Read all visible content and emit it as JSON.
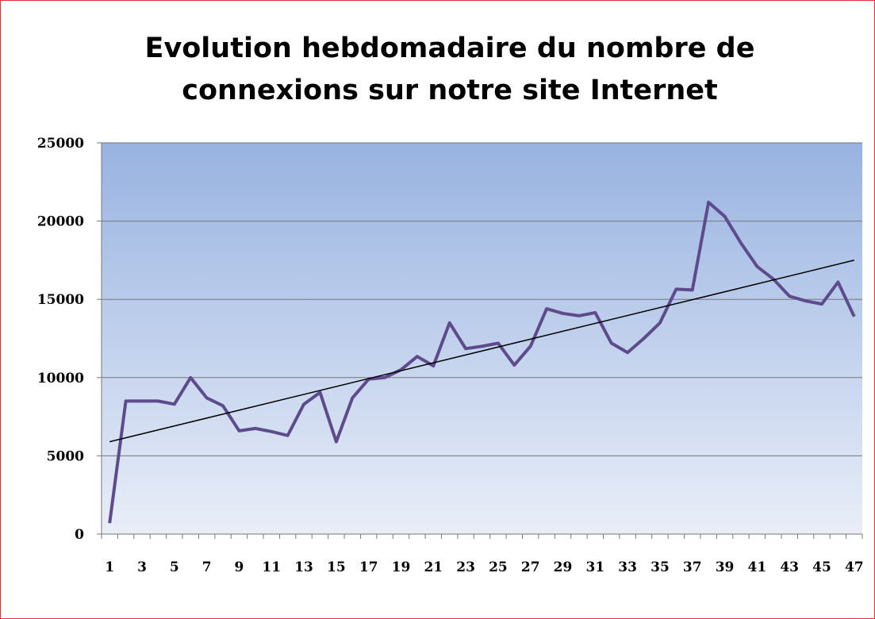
{
  "chart_data": {
    "type": "line",
    "title": [
      "Evolution hebdomadaire du nombre de",
      "connexions sur notre site Internet"
    ],
    "categories": [
      1,
      null,
      3,
      null,
      5,
      null,
      7,
      null,
      9,
      null,
      11,
      null,
      13,
      null,
      15,
      null,
      17,
      null,
      19,
      null,
      21,
      null,
      23,
      null,
      25,
      null,
      27,
      null,
      29,
      null,
      31,
      null,
      33,
      null,
      35,
      null,
      37,
      null,
      39,
      null,
      41,
      null,
      43,
      null,
      45,
      null,
      47
    ],
    "series": [
      {
        "color": "#5e4b8b",
        "values": [
          700,
          8500,
          8500,
          8500,
          8300,
          10000,
          8700,
          8200,
          6600,
          6750,
          6550,
          6300,
          8300,
          9050,
          5900,
          8700,
          9900,
          10000,
          10500,
          11350,
          10750,
          13500,
          11850,
          12000,
          12200,
          10800,
          12000,
          14400,
          14100,
          13950,
          14150,
          12200,
          11600,
          12500,
          13500,
          15650,
          15600,
          21200,
          20300,
          18600,
          17100,
          16300,
          15200,
          14900,
          14700,
          16100,
          13900
        ]
      }
    ],
    "trendline": {
      "color": "#000000",
      "values": [
        5900,
        17500
      ]
    },
    "ylim": [
      0,
      25000
    ],
    "yticks": [
      0,
      5000,
      10000,
      15000,
      20000,
      25000
    ],
    "grid": true
  }
}
